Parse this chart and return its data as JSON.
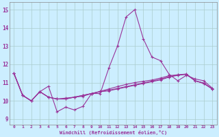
{
  "xlabel": "Windchill (Refroidissement éolien,°C)",
  "background_color": "#cceeff",
  "grid_color": "#aacccc",
  "line_color": "#993399",
  "spine_color": "#888888",
  "xlim": [
    -0.5,
    23.5
  ],
  "ylim": [
    8.7,
    15.4
  ],
  "xticks": [
    0,
    1,
    2,
    3,
    4,
    5,
    6,
    7,
    8,
    9,
    10,
    11,
    12,
    13,
    14,
    15,
    16,
    17,
    18,
    19,
    20,
    21,
    22,
    23
  ],
  "yticks": [
    9,
    10,
    11,
    12,
    13,
    14,
    15
  ],
  "series1": [
    11.5,
    10.3,
    10.0,
    10.5,
    10.8,
    9.4,
    9.65,
    9.5,
    9.7,
    10.4,
    10.4,
    11.8,
    13.0,
    14.6,
    15.0,
    13.4,
    12.4,
    12.2,
    11.45,
    11.1,
    11.4,
    11.2,
    11.1,
    10.7
  ],
  "series2": [
    11.5,
    10.3,
    10.0,
    10.5,
    10.2,
    10.1,
    10.1,
    10.2,
    10.3,
    10.4,
    10.5,
    10.55,
    10.65,
    10.75,
    10.85,
    10.95,
    11.05,
    11.15,
    11.3,
    11.4,
    11.45,
    11.1,
    10.95,
    10.65
  ],
  "series3": [
    11.5,
    10.3,
    10.0,
    10.5,
    10.2,
    10.1,
    10.15,
    10.2,
    10.25,
    10.4,
    10.52,
    10.65,
    10.78,
    10.9,
    11.0,
    11.07,
    11.14,
    11.25,
    11.38,
    11.43,
    11.47,
    11.1,
    10.98,
    10.65
  ],
  "series4": [
    11.5,
    10.3,
    10.0,
    10.5,
    10.2,
    10.1,
    10.1,
    10.2,
    10.3,
    10.4,
    10.5,
    10.58,
    10.68,
    10.78,
    10.88,
    10.98,
    11.08,
    11.18,
    11.33,
    11.42,
    11.46,
    11.1,
    10.96,
    10.65
  ]
}
